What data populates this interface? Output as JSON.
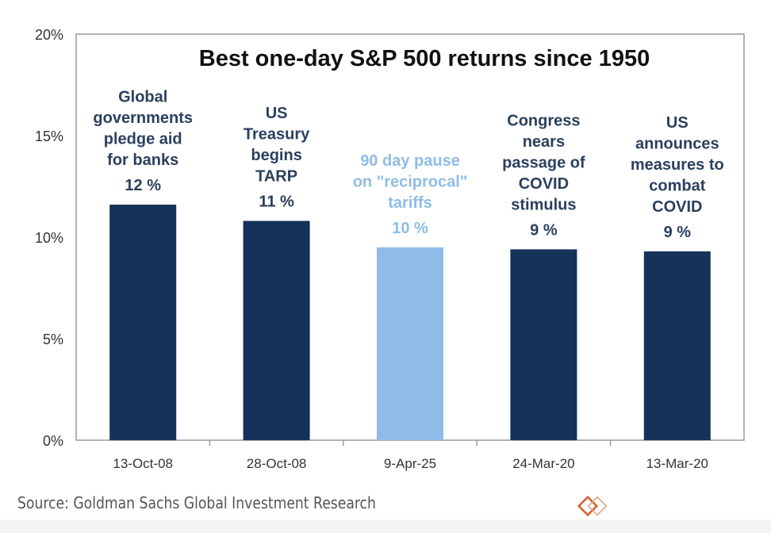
{
  "chart_data": {
    "type": "bar",
    "title": "Best one-day S&P 500 returns since 1950",
    "categories": [
      "13-Oct-08",
      "28-Oct-08",
      "9-Apr-25",
      "24-Mar-20",
      "13-Mar-20"
    ],
    "values": [
      11.6,
      10.8,
      9.5,
      9.4,
      9.3
    ],
    "data_labels": [
      "12 %",
      "11 %",
      "10 %",
      "9 %",
      "9 %"
    ],
    "annotations": [
      [
        "Global",
        "governments",
        "pledge aid",
        "for banks"
      ],
      [
        "US",
        "Treasury",
        "begins",
        "TARP"
      ],
      [
        "90 day pause",
        "on \"reciprocal\"",
        "tariffs"
      ],
      [
        "Congress",
        "nears",
        "passage of",
        "COVID",
        "stimulus"
      ],
      [
        "US",
        "announces",
        "measures to",
        "combat",
        "COVID"
      ]
    ],
    "highlight_index": 2,
    "yticks": [
      "0%",
      "5%",
      "10%",
      "15%",
      "20%"
    ],
    "ylim": [
      0,
      20
    ],
    "grid": false,
    "colors": {
      "bar": "#14325a",
      "highlight": "#8fbce6",
      "annotation": "#2b3f5e",
      "highlight_text": "#8fbce6"
    }
  },
  "source": "Source: Goldman Sachs Global Investment Research",
  "logo": "logo-icon"
}
